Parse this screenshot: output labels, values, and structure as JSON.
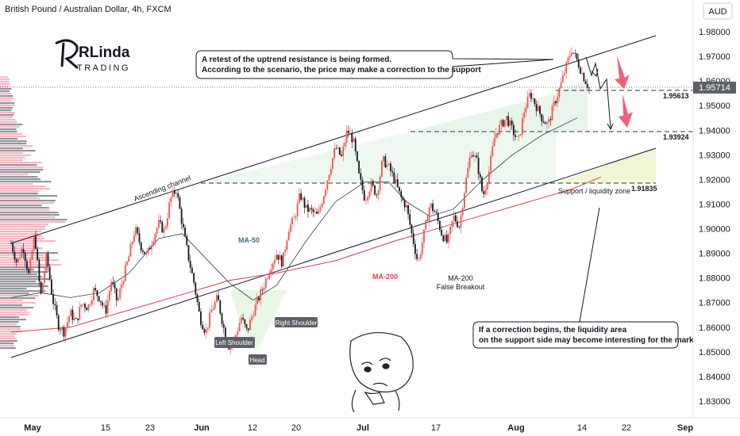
{
  "chart_data": {
    "type": "candlestick",
    "title": "British Pound / Australian Dollar, 4h, FXCM",
    "currency": "AUD",
    "y_axis": {
      "min": 1.825,
      "max": 1.985,
      "ticks": [
        "1.98000",
        "1.97000",
        "1.96000",
        "1.95000",
        "1.94000",
        "1.93000",
        "1.92000",
        "1.91000",
        "1.90000",
        "1.89000",
        "1.88000",
        "1.87000",
        "1.86000",
        "1.85000",
        "1.84000",
        "1.83000"
      ]
    },
    "x_axis": {
      "labels": [
        {
          "text": "May",
          "bold": true
        },
        {
          "text": "15",
          "bold": false
        },
        {
          "text": "23",
          "bold": false
        },
        {
          "text": "Jun",
          "bold": true
        },
        {
          "text": "12",
          "bold": false
        },
        {
          "text": "20",
          "bold": false
        },
        {
          "text": "Jul",
          "bold": true
        },
        {
          "text": "17",
          "bold": false
        },
        {
          "text": "Aug",
          "bold": true
        },
        {
          "text": "14",
          "bold": false
        },
        {
          "text": "22",
          "bold": false
        },
        {
          "text": "Sep",
          "bold": true
        }
      ]
    },
    "current_price": {
      "label": "1.95714",
      "value": 1.95714
    },
    "levels": [
      {
        "label": "1.95613",
        "value": 1.95613
      },
      {
        "label": "1.93924",
        "value": 1.93924
      },
      {
        "label": "1.91835",
        "value": 1.91835
      }
    ],
    "price_path": [
      [
        0,
        1.894
      ],
      [
        2,
        1.886
      ],
      [
        4,
        1.893
      ],
      [
        6,
        1.881
      ],
      [
        8,
        1.898
      ],
      [
        10,
        1.872
      ],
      [
        12,
        1.889
      ],
      [
        14,
        1.872
      ],
      [
        16,
        1.861
      ],
      [
        18,
        1.858
      ],
      [
        20,
        1.866
      ],
      [
        22,
        1.862
      ],
      [
        24,
        1.87
      ],
      [
        26,
        1.868
      ],
      [
        28,
        1.875
      ],
      [
        30,
        1.872
      ],
      [
        32,
        1.866
      ],
      [
        34,
        1.879
      ],
      [
        36,
        1.87
      ],
      [
        38,
        1.88
      ],
      [
        40,
        1.889
      ],
      [
        42,
        1.9
      ],
      [
        44,
        1.893
      ],
      [
        46,
        1.889
      ],
      [
        48,
        1.896
      ],
      [
        50,
        1.902
      ],
      [
        52,
        1.899
      ],
      [
        54,
        1.912
      ],
      [
        56,
        1.916
      ],
      [
        58,
        1.902
      ],
      [
        60,
        1.889
      ],
      [
        62,
        1.878
      ],
      [
        64,
        1.864
      ],
      [
        66,
        1.858
      ],
      [
        68,
        1.867
      ],
      [
        70,
        1.872
      ],
      [
        72,
        1.86
      ],
      [
        74,
        1.852
      ],
      [
        76,
        1.856
      ],
      [
        78,
        1.864
      ],
      [
        80,
        1.858
      ],
      [
        82,
        1.866
      ],
      [
        84,
        1.872
      ],
      [
        86,
        1.878
      ],
      [
        88,
        1.885
      ],
      [
        90,
        1.89
      ],
      [
        92,
        1.886
      ],
      [
        94,
        1.9
      ],
      [
        96,
        1.904
      ],
      [
        98,
        1.914
      ],
      [
        100,
        1.908
      ],
      [
        102,
        1.907
      ],
      [
        104,
        1.905
      ],
      [
        106,
        1.914
      ],
      [
        108,
        1.924
      ],
      [
        110,
        1.933
      ],
      [
        112,
        1.929
      ],
      [
        114,
        1.94
      ],
      [
        116,
        1.936
      ],
      [
        118,
        1.921
      ],
      [
        120,
        1.912
      ],
      [
        122,
        1.918
      ],
      [
        124,
        1.914
      ],
      [
        126,
        1.928
      ],
      [
        128,
        1.925
      ],
      [
        130,
        1.92
      ],
      [
        132,
        1.913
      ],
      [
        134,
        1.909
      ],
      [
        136,
        1.897
      ],
      [
        138,
        1.886
      ],
      [
        140,
        1.898
      ],
      [
        142,
        1.91
      ],
      [
        144,
        1.906
      ],
      [
        146,
        1.898
      ],
      [
        148,
        1.894
      ],
      [
        150,
        1.905
      ],
      [
        152,
        1.901
      ],
      [
        154,
        1.918
      ],
      [
        156,
        1.932
      ],
      [
        158,
        1.927
      ],
      [
        160,
        1.913
      ],
      [
        162,
        1.923
      ],
      [
        164,
        1.938
      ],
      [
        166,
        1.942
      ],
      [
        168,
        1.945
      ],
      [
        170,
        1.94
      ],
      [
        172,
        1.935
      ],
      [
        174,
        1.948
      ],
      [
        176,
        1.955
      ],
      [
        178,
        1.95
      ],
      [
        180,
        1.945
      ],
      [
        182,
        1.942
      ],
      [
        184,
        1.95
      ],
      [
        186,
        1.957
      ],
      [
        188,
        1.965
      ],
      [
        190,
        1.973
      ],
      [
        192,
        1.968
      ],
      [
        194,
        1.962
      ],
      [
        196,
        1.957
      ]
    ],
    "ma50": [
      [
        0,
        1.872
      ],
      [
        10,
        1.874
      ],
      [
        20,
        1.872
      ],
      [
        30,
        1.874
      ],
      [
        40,
        1.882
      ],
      [
        50,
        1.896
      ],
      [
        58,
        1.898
      ],
      [
        66,
        1.888
      ],
      [
        74,
        1.878
      ],
      [
        82,
        1.871
      ],
      [
        90,
        1.877
      ],
      [
        100,
        1.895
      ],
      [
        110,
        1.911
      ],
      [
        120,
        1.919
      ],
      [
        128,
        1.919
      ],
      [
        134,
        1.911
      ],
      [
        142,
        1.905
      ],
      [
        150,
        1.908
      ],
      [
        160,
        1.92
      ],
      [
        170,
        1.93
      ],
      [
        180,
        1.938
      ],
      [
        192,
        1.945
      ]
    ],
    "ma200": [
      [
        0,
        1.858
      ],
      [
        20,
        1.86
      ],
      [
        40,
        1.867
      ],
      [
        60,
        1.874
      ],
      [
        74,
        1.879
      ],
      [
        90,
        1.882
      ],
      [
        110,
        1.887
      ],
      [
        130,
        1.895
      ],
      [
        150,
        1.902
      ],
      [
        170,
        1.909
      ],
      [
        190,
        1.916
      ],
      [
        200,
        1.921
      ]
    ],
    "annotations": {
      "top_callout": [
        "A retest of the uptrend resistance is being formed.",
        "According to the scenario, the price may make a correction to the support"
      ],
      "bottom_callout": [
        "If a correction begins,  the liquidity area",
        "on the support side may become interesting for the market"
      ],
      "channel_label": "Ascending channel",
      "ma50_label": "MA-50",
      "ma200_label": "MA-200",
      "false_breakout": [
        "MA-200",
        "False Breakout"
      ],
      "support_zone": "Support / liquidity zone",
      "left_shoulder": "Left Shoulder",
      "head": "Head",
      "right_shoulder": "Right Shoulder"
    },
    "colors": {
      "up": "#ef5350",
      "down": "#131722",
      "ma50": "#2f3b52",
      "ma200": "#e03c4f",
      "channel_fill": "#e6f4ea",
      "arrow_red": "#f06277",
      "support_fill": "#eef6d5"
    }
  },
  "logo": {
    "brand": "RLinda",
    "sub": "TRADING"
  }
}
